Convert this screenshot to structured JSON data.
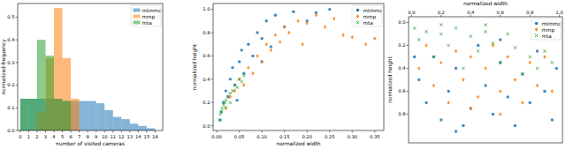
{
  "chart_data": [
    {
      "type": "histogram",
      "x_label": "number of visited cameras",
      "y_label": "normalized frequency",
      "xlim": [
        -0.3,
        16.9
      ],
      "ylim": [
        0,
        0.56
      ],
      "xticks": [
        0,
        1,
        2,
        3,
        4,
        5,
        6,
        7,
        8,
        9,
        10,
        11,
        12,
        13,
        14,
        15,
        16
      ],
      "yticks": [
        {
          "value": 0,
          "label": "0.0"
        },
        0.1,
        0.2,
        0.3,
        0.4,
        0.5
      ],
      "legend": "upper right",
      "grid": false,
      "series": [
        {
          "name": "mtmmc",
          "color": "#1f77b4",
          "bins": [
            0,
            1,
            2,
            3,
            4,
            5,
            6,
            7,
            8,
            9,
            10,
            11,
            12,
            13,
            14,
            15,
            16
          ],
          "values": [
            0.14,
            0.14,
            0.14,
            0.14,
            0.14,
            0.13,
            0.13,
            0.13,
            0.13,
            0.12,
            0.09,
            0.06,
            0.05,
            0.03,
            0.02,
            0.01
          ]
        },
        {
          "name": "mmp",
          "color": "#ff7f0e",
          "bins": [
            2,
            3,
            4,
            5,
            6,
            7
          ],
          "values": [
            0.08,
            0.32,
            0.54,
            0.32,
            0.14
          ]
        },
        {
          "name": "mta",
          "color": "#2ca02c",
          "bins": [
            0,
            1,
            2,
            3,
            4,
            5,
            6
          ],
          "values": [
            0.14,
            0.14,
            0.4,
            0.33,
            0.14,
            0.13
          ]
        }
      ]
    },
    {
      "type": "scatter",
      "x_label": "normalized width",
      "y_label": "normalized height",
      "xlim": [
        -0.008,
        0.37
      ],
      "ylim": [
        -0.04,
        1.05
      ],
      "xticks": [
        {
          "value": 0,
          "label": "0.00"
        },
        0.05,
        {
          "value": 0.1,
          "label": "0.10"
        },
        0.15,
        {
          "value": 0.2,
          "label": "0.20"
        },
        0.25,
        {
          "value": 0.3,
          "label": "0.30"
        },
        0.35
      ],
      "yticks": [
        {
          "value": 0,
          "label": "0.0"
        },
        0.2,
        0.4,
        0.6,
        0.8,
        {
          "value": 1,
          "label": "1.0"
        }
      ],
      "legend": "upper right",
      "grid": false,
      "series": [
        {
          "name": "mtmmc",
          "color": "#1f77b4",
          "marker": "circle",
          "x": [
            0.01,
            0.015,
            0.02,
            0.025,
            0.03,
            0.035,
            0.04,
            0.05,
            0.055,
            0.06,
            0.07,
            0.08,
            0.09,
            0.1,
            0.11,
            0.12,
            0.13,
            0.15,
            0.17,
            0.2,
            0.22,
            0.25,
            0.008,
            0.045,
            0.1
          ],
          "values": [
            0.12,
            0.2,
            0.3,
            0.25,
            0.4,
            0.5,
            0.35,
            0.55,
            0.65,
            0.45,
            0.7,
            0.6,
            0.8,
            0.75,
            0.9,
            0.68,
            0.95,
            0.85,
            0.98,
            0.9,
            0.97,
            1.0,
            0.05,
            0.22,
            0.55
          ]
        },
        {
          "name": "mmp",
          "color": "#ff7f0e",
          "marker": "diamond",
          "x": [
            0.02,
            0.03,
            0.04,
            0.05,
            0.06,
            0.07,
            0.08,
            0.09,
            0.1,
            0.11,
            0.12,
            0.13,
            0.14,
            0.15,
            0.16,
            0.18,
            0.2,
            0.22,
            0.24,
            0.26,
            0.28,
            0.3,
            0.33,
            0.35,
            0.19
          ],
          "values": [
            0.15,
            0.25,
            0.3,
            0.4,
            0.35,
            0.5,
            0.45,
            0.6,
            0.55,
            0.7,
            0.65,
            0.78,
            0.72,
            0.85,
            0.8,
            0.9,
            0.88,
            0.95,
            0.85,
            0.92,
            0.78,
            0.76,
            0.7,
            0.75,
            0.7
          ]
        },
        {
          "name": "mta",
          "color": "#2ca02c",
          "marker": "x",
          "x": [
            0.005,
            0.008,
            0.01,
            0.012,
            0.015,
            0.018,
            0.02,
            0.025,
            0.03,
            0.035,
            0.04,
            0.045,
            0.05,
            0.055,
            0.06,
            0.02,
            0.03
          ],
          "values": [
            0.05,
            0.1,
            0.12,
            0.15,
            0.18,
            0.2,
            0.22,
            0.25,
            0.28,
            0.3,
            0.35,
            0.33,
            0.4,
            0.38,
            0.43,
            0.16,
            0.2
          ]
        }
      ]
    },
    {
      "type": "scatter",
      "x_label": "normalized width",
      "y_label": "normalized height",
      "xlim": [
        -0.02,
        1.02
      ],
      "ylim": [
        1.05,
        -0.05
      ],
      "xticks": [
        {
          "value": 0,
          "label": "0.0"
        },
        0.2,
        0.4,
        0.6,
        0.8,
        {
          "value": 1,
          "label": "1.0"
        }
      ],
      "yticks": [
        {
          "value": 0,
          "label": "0.0"
        },
        0.2,
        0.4,
        0.6,
        0.8
      ],
      "legend": "upper right",
      "grid": false,
      "series": [
        {
          "name": "mtmmc",
          "color": "#1f77b4",
          "marker": "circle",
          "x": [
            0.05,
            0.1,
            0.15,
            0.2,
            0.25,
            0.3,
            0.35,
            0.4,
            0.45,
            0.5,
            0.55,
            0.6,
            0.65,
            0.7,
            0.75,
            0.8,
            0.85,
            0.9,
            0.95,
            0.02,
            0.3,
            0.6,
            0.98
          ],
          "values": [
            0.5,
            0.7,
            0.3,
            0.85,
            0.6,
            0.4,
            0.9,
            0.75,
            0.2,
            0.55,
            0.8,
            0.35,
            0.65,
            0.9,
            0.45,
            0.7,
            0.25,
            0.6,
            0.85,
            0.3,
            0.95,
            0.15,
            0.4
          ]
        },
        {
          "name": "mmp",
          "color": "#ff7f0e",
          "marker": "diamond",
          "x": [
            0.05,
            0.1,
            0.15,
            0.2,
            0.25,
            0.3,
            0.35,
            0.4,
            0.45,
            0.5,
            0.55,
            0.6,
            0.65,
            0.7,
            0.75,
            0.8,
            0.85,
            0.9,
            0.95,
            0.4,
            0.6
          ],
          "values": [
            0.4,
            0.2,
            0.55,
            0.35,
            0.7,
            0.25,
            0.5,
            0.3,
            0.65,
            0.4,
            0.2,
            0.6,
            0.3,
            0.5,
            0.7,
            0.35,
            0.55,
            0.3,
            0.6,
            0.75,
            0.8
          ]
        },
        {
          "name": "mta",
          "color": "#2ca02c",
          "marker": "x",
          "x": [
            0.02,
            0.05,
            0.1,
            0.15,
            0.2,
            0.25,
            0.3,
            0.35,
            0.4,
            0.45,
            0.5,
            0.55,
            0.6,
            0.65,
            0.7,
            0.75,
            0.8,
            0.85,
            0.9,
            0.95,
            0.5,
            0.2
          ],
          "values": [
            0.05,
            0.15,
            0.08,
            0.3,
            0.1,
            0.2,
            0.05,
            0.4,
            0.12,
            0.25,
            0.08,
            0.18,
            0.35,
            0.1,
            0.22,
            0.45,
            0.3,
            0.4,
            0.25,
            0.35,
            0.02,
            0.02
          ]
        }
      ]
    }
  ]
}
